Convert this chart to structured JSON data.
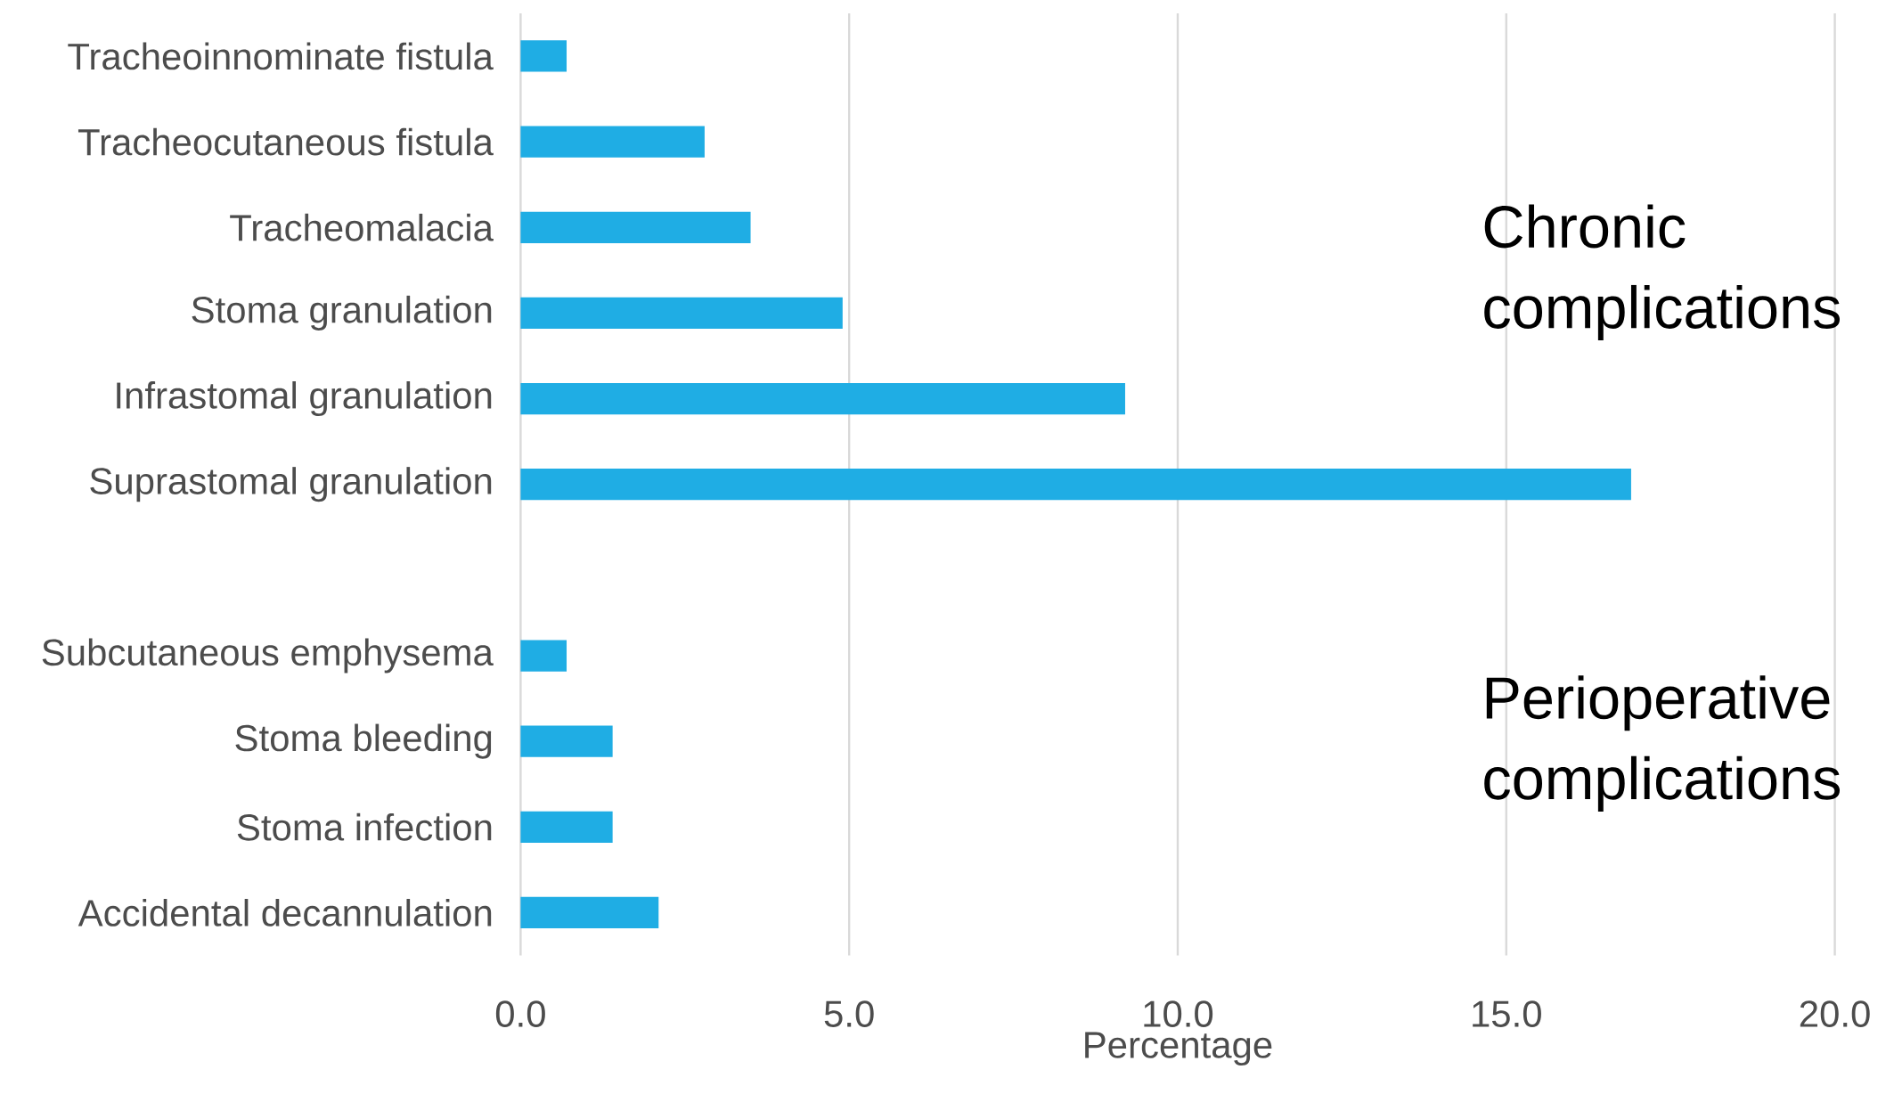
{
  "chart_data": {
    "type": "bar",
    "orientation": "horizontal",
    "xlabel": "Percentage",
    "categories": [
      "Tracheoinnominate fistula",
      "Tracheocutaneous fistula",
      "Tracheomalacia",
      "Stoma granulation",
      "Infrastomal granulation",
      "Suprastomal granulation",
      null,
      "Subcutaneous emphysema",
      "Stoma bleeding",
      "Stoma infection",
      "Accidental decannulation"
    ],
    "values": [
      0.7,
      2.8,
      3.5,
      4.9,
      9.2,
      16.9,
      null,
      0.7,
      1.4,
      1.4,
      2.1
    ],
    "color": "#1fade4",
    "xlim": [
      0,
      20
    ],
    "xticks": [
      {
        "value": 0,
        "label": "0.0"
      },
      {
        "value": 5,
        "label": "5.0"
      },
      {
        "value": 10,
        "label": "10.0"
      },
      {
        "value": 15,
        "label": "15.0"
      },
      {
        "value": 20,
        "label": "20.0"
      }
    ],
    "grid": "x",
    "annotations": [
      "Chronic complications",
      "Perioperative complications"
    ]
  }
}
